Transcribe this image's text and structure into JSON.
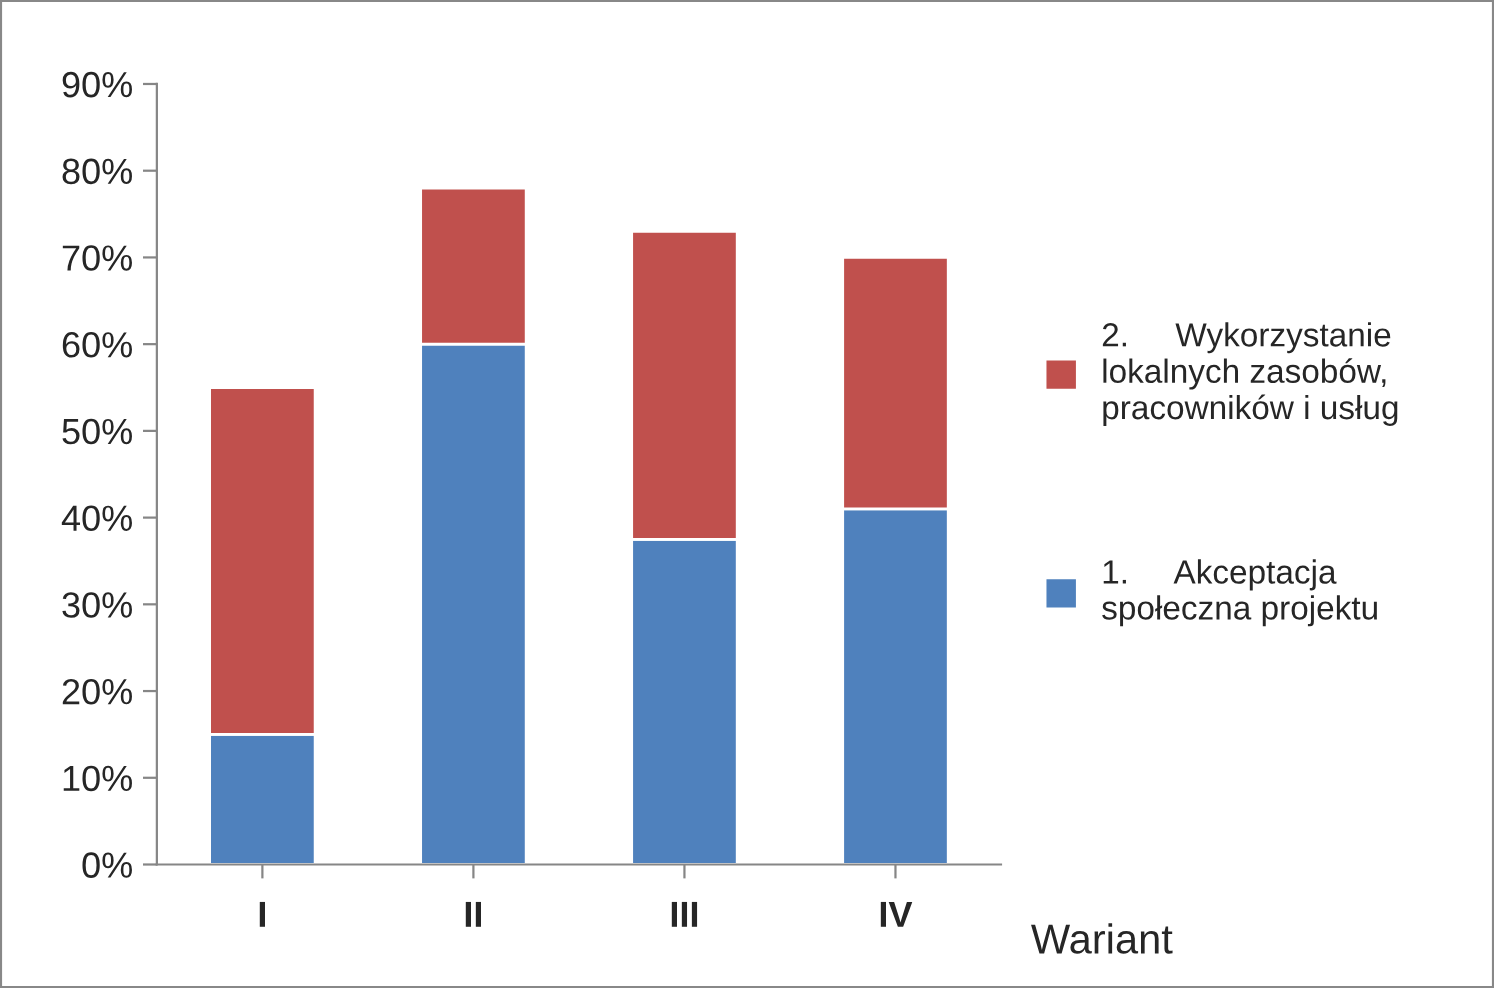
{
  "chart_data": {
    "type": "bar",
    "stacked": true,
    "xlabel": "Wariant",
    "categories": [
      "I",
      "II",
      "III",
      "IV"
    ],
    "series": [
      {
        "name": "1.     Akceptacja\nspołeczna projektu",
        "color": "#4f81bd",
        "values": [
          15,
          60,
          37.5,
          41
        ]
      },
      {
        "name": "2.     Wykorzystanie\nlokalnych zasobów,\npracowników i usług",
        "color": "#c0504d",
        "values": [
          40,
          18,
          35.5,
          29
        ]
      }
    ],
    "ylim": [
      0,
      90
    ],
    "yticks": [
      {
        "value": 0,
        "label": "0%"
      },
      {
        "value": 10,
        "label": "10%"
      },
      {
        "value": 20,
        "label": "20%"
      },
      {
        "value": 30,
        "label": "30%"
      },
      {
        "value": 40,
        "label": "40%"
      },
      {
        "value": 50,
        "label": "50%"
      },
      {
        "value": 60,
        "label": "60%"
      },
      {
        "value": 70,
        "label": "70%"
      },
      {
        "value": 80,
        "label": "80%"
      },
      {
        "value": 90,
        "label": "90%"
      }
    ],
    "grid": false,
    "legend": "right"
  }
}
